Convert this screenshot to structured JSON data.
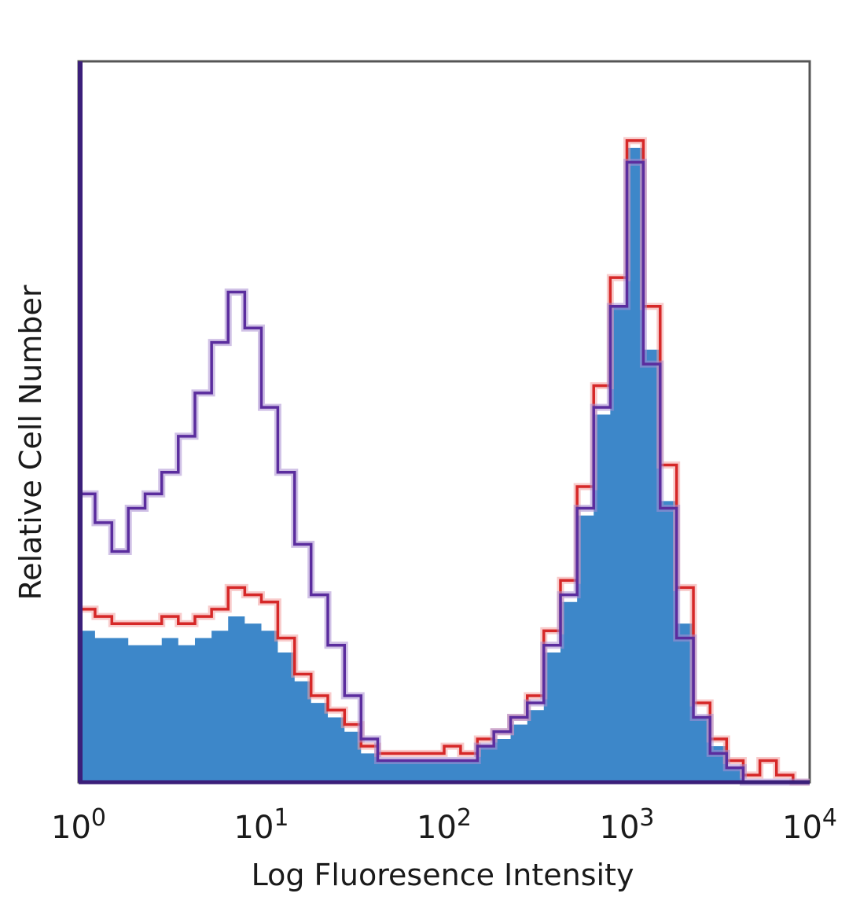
{
  "chart_data": {
    "type": "area",
    "subtype": "flow-cytometry-histogram-overlay",
    "title": "",
    "xlabel": "Log Fluoresence Intensity",
    "ylabel": "Relative Cell Number",
    "x_scale": "log",
    "xlim": [
      1,
      10000
    ],
    "ylim": [
      0,
      100
    ],
    "x_ticks": [
      {
        "value": 1,
        "base": "10",
        "exp": "0"
      },
      {
        "value": 10,
        "base": "10",
        "exp": "1"
      },
      {
        "value": 100,
        "base": "10",
        "exp": "2"
      },
      {
        "value": 1000,
        "base": "10",
        "exp": "3"
      },
      {
        "value": 10000,
        "base": "10",
        "exp": "4"
      }
    ],
    "grid": false,
    "legend": "none",
    "colors": {
      "filled": "#3d87c9",
      "red_line": "#d62828",
      "red_light": "#f2a0a0",
      "purple_line": "#5b2d9e",
      "purple_light": "#a98ed1",
      "frame": "#555555",
      "baseline": "#3b1f7a"
    },
    "x": [
      1.0,
      1.23,
      1.52,
      1.87,
      2.31,
      2.85,
      3.51,
      4.33,
      5.34,
      6.58,
      8.11,
      10.0,
      12.3,
      15.2,
      18.7,
      23.1,
      28.5,
      35.1,
      43.3,
      53.4,
      65.8,
      81.1,
      100,
      123,
      152,
      187,
      231,
      285,
      351,
      433,
      534,
      658,
      811,
      1000,
      1230,
      1520,
      1870,
      2310,
      2850,
      3510,
      4330,
      5340,
      6580,
      8110,
      10000
    ],
    "series": [
      {
        "values": [
          21,
          20,
          20,
          19,
          19,
          20,
          19,
          20,
          21,
          23,
          22,
          21,
          18,
          14,
          11,
          9,
          7,
          4,
          3,
          3,
          3,
          3,
          3,
          3,
          5,
          6,
          8,
          10,
          18,
          25,
          37,
          51,
          66,
          88,
          60,
          39,
          22,
          9,
          5,
          2,
          0,
          0,
          0,
          0,
          0
        ],
        "style": "filled"
      },
      {
        "values": [
          24,
          23,
          22,
          22,
          22,
          23,
          22,
          23,
          24,
          27,
          26,
          25,
          20,
          15,
          12,
          10,
          8,
          5,
          4,
          4,
          4,
          4,
          5,
          4,
          6,
          7,
          9,
          12,
          21,
          28,
          41,
          55,
          70,
          89,
          66,
          44,
          27,
          11,
          6,
          3,
          1,
          3,
          1,
          0,
          0
        ],
        "style": "red-line"
      },
      {
        "values": [
          40,
          36,
          32,
          38,
          40,
          43,
          48,
          54,
          61,
          68,
          63,
          52,
          43,
          33,
          26,
          19,
          12,
          6,
          3,
          3,
          3,
          3,
          3,
          3,
          5,
          7,
          9,
          11,
          19,
          26,
          38,
          52,
          66,
          86,
          58,
          38,
          20,
          9,
          4,
          2,
          0,
          0,
          0,
          0,
          0
        ],
        "style": "purple-line"
      }
    ]
  }
}
